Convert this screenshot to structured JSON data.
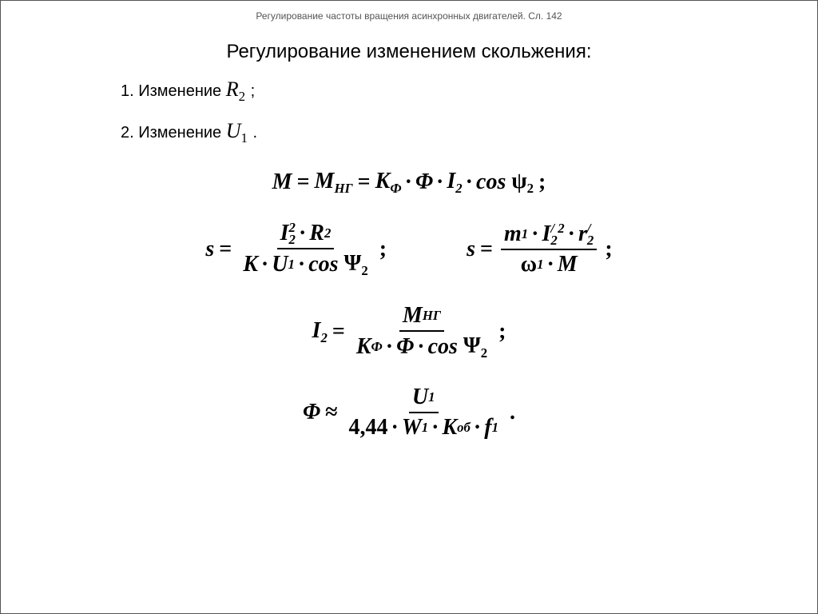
{
  "header": {
    "text": "Регулирование частоты вращения асинхронных двигателей. Сл. 142"
  },
  "title": "Регулирование изменением скольжения:",
  "list": {
    "item1_prefix": "1. Изменение  ",
    "item1_symbol_base": "R",
    "item1_symbol_sub": "2",
    "item1_tail": " ;",
    "item2_prefix": "2. Изменение  ",
    "item2_symbol_base": "U",
    "item2_symbol_sub": "1",
    "item2_tail": " ."
  },
  "formulas": {
    "f1": {
      "M": "M",
      "eq": "=",
      "MHG_M": "M",
      "MHG_sub": "НГ",
      "K": "K",
      "Ksub": "Ф",
      "Phi": "Φ",
      "I": "I",
      "Isub": "2",
      "cos": "cos",
      "psi": "ψ",
      "psisub": "2",
      "end": ";"
    },
    "f2a": {
      "s": "s",
      "eq": "=",
      "num_I": "I",
      "num_I_sub": "2",
      "num_I_sup": "2",
      "num_R": "R",
      "num_R_sub": "2",
      "den_K": "K",
      "den_U": "U",
      "den_U_sub": "1",
      "den_cos": "cos",
      "den_Psi": "Ψ",
      "den_Psi_sub": "2",
      "end": ";"
    },
    "f2b": {
      "s": "s",
      "eq": "=",
      "num_m": "m",
      "num_m_sub": "1",
      "num_I": "I",
      "num_I_sub": "2",
      "num_I_supA": "/",
      "num_I_supB": "2",
      "num_r": "r",
      "num_r_sub": "2",
      "num_r_sup": "/",
      "den_w": "ω",
      "den_w_sub": "1",
      "den_M": "M",
      "end": ";"
    },
    "f3": {
      "I": "I",
      "Isub": "2",
      "eq": "=",
      "num_M": "M",
      "num_M_sub": "НГ",
      "den_K": "K",
      "den_K_sub": "Ф",
      "den_Phi": "Φ",
      "den_cos": "cos",
      "den_Psi": "Ψ",
      "den_Psi_sub": "2",
      "end": ";"
    },
    "f4": {
      "Phi": "Φ",
      "approx": "≈",
      "num_U": "U",
      "num_U_sub": "1",
      "den_c": "4,44",
      "den_W": "W",
      "den_W_sub": "1",
      "den_K": "K",
      "den_K_sub": "об",
      "den_f": "f",
      "den_f_sub": "1",
      "end": "."
    }
  }
}
